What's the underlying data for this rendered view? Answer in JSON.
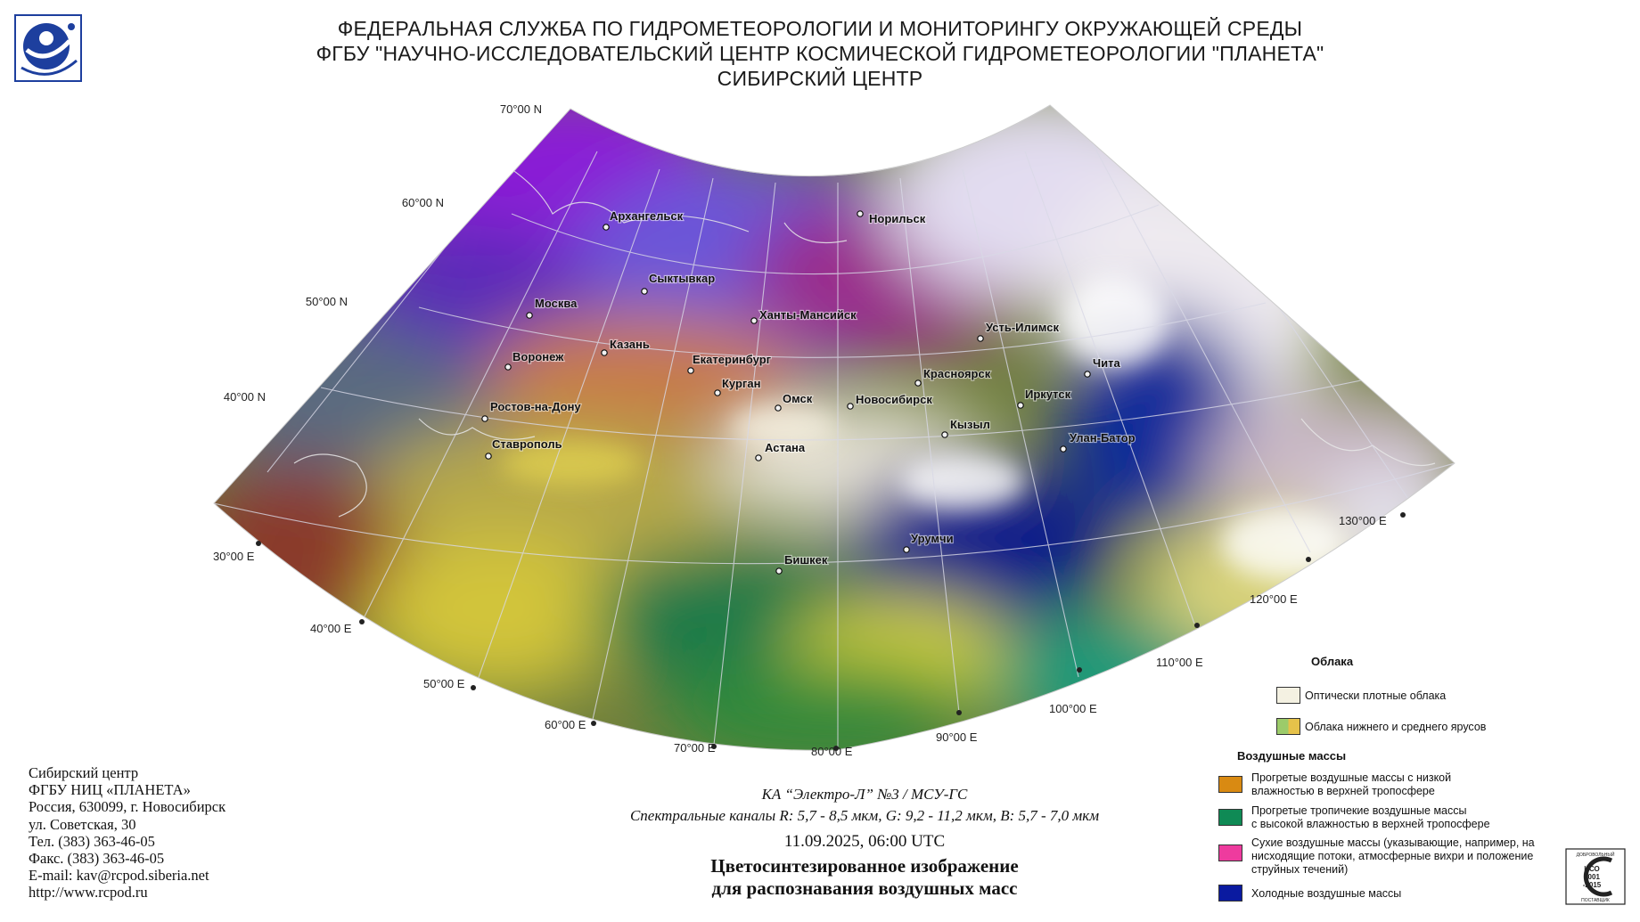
{
  "header": {
    "line1": "ФЕДЕРАЛЬНАЯ СЛУЖБА ПО ГИДРОМЕТЕОРОЛОГИИ И МОНИТОРИНГУ ОКРУЖАЮЩЕЙ СРЕДЫ",
    "line2": "ФГБУ \"НАУЧНО-ИССЛЕДОВАТЕЛЬСКИЙ ЦЕНТР КОСМИЧЕСКОЙ ГИДРОМЕТЕОРОЛОГИИ \"ПЛАНЕТА\"",
    "line3": "СИБИРСКИЙ ЦЕНТР"
  },
  "map": {
    "latitude_labels": [
      "70°00 N",
      "60°00 N",
      "50°00 N",
      "40°00 N"
    ],
    "longitude_labels": [
      "30°00 E",
      "40°00 E",
      "50°00 E",
      "60°00 E",
      "70°00 E",
      "80°00 E",
      "90°00 E",
      "100°00 E",
      "110°00 E",
      "120°00 E",
      "130°00 E"
    ],
    "cities": [
      "Архангельск",
      "Норильск",
      "Сыктывкар",
      "Москва",
      "Ханты-Мансийск",
      "Казань",
      "Усть-Илимск",
      "Воронеж",
      "Екатеринбург",
      "Красноярск",
      "Чита",
      "Курган",
      "Омск",
      "Новосибирск",
      "Иркутск",
      "Ростов-на-Дону",
      "Кызыл",
      "Улан-Батор",
      "Ставрополь",
      "Астана",
      "Урумчи",
      "Бишкек"
    ]
  },
  "contact": {
    "line1": "Сибирский центр",
    "line2": "ФГБУ НИЦ «ПЛАНЕТА»",
    "line3": "Россия, 630099, г. Новосибирск",
    "line4": "ул. Советская, 30",
    "phone": "Тел. (383) 363-46-05",
    "fax": "Факс. (383) 363-46-05",
    "email": "E-mail: kav@rcpod.siberia.net",
    "web": "http://www.rcpod.ru"
  },
  "caption": {
    "satellite": "КА “Электро-Л” №3 / МСУ-ГС",
    "channels": "Спектральные каналы R: 5,7 - 8,5 мкм, G: 9,2 - 11,2 мкм, B: 5,7 - 7,0 мкм",
    "datetime": "11.09.2025, 06:00 UTC",
    "title1": "Цветосинтезированное изображение",
    "title2": "для распознавания воздушных масс"
  },
  "legend": {
    "clouds_heading": "Облака",
    "clouds": [
      {
        "label": "Оптически плотные облака",
        "colors": [
          "#f4f1e2"
        ]
      },
      {
        "label": "Облака нижнего и среднего ярусов",
        "colors": [
          "#9ccb6a",
          "#e6c24a"
        ]
      }
    ],
    "air_heading": "Воздушные массы",
    "air": [
      {
        "line1": "Прогретые воздушные массы с низкой",
        "line2": "влажностью в верхней тропосфере",
        "line3": "",
        "color": "#d98a12"
      },
      {
        "line1": "Прогретые тропичекие воздушные массы",
        "line2": "с высокой влажностью в верхней тропосфере",
        "line3": "",
        "color": "#0f8a55"
      },
      {
        "line1": "Сухие воздушные массы (указывающие, например, на",
        "line2": "нисходящие потоки, атмосферные вихри и положение",
        "line3": "струйных течений)",
        "color": "#ee3b9e"
      },
      {
        "line1": "Холодные воздушные массы",
        "line2": "",
        "line3": "",
        "color": "#0a1aa0"
      }
    ]
  },
  "iso": {
    "top": "ДОБРОВОЛЬНЫЙ",
    "std1": "ИСО",
    "std2": "9001",
    "std3": "-2015",
    "bottom": "ПОСТАВЩИК"
  }
}
